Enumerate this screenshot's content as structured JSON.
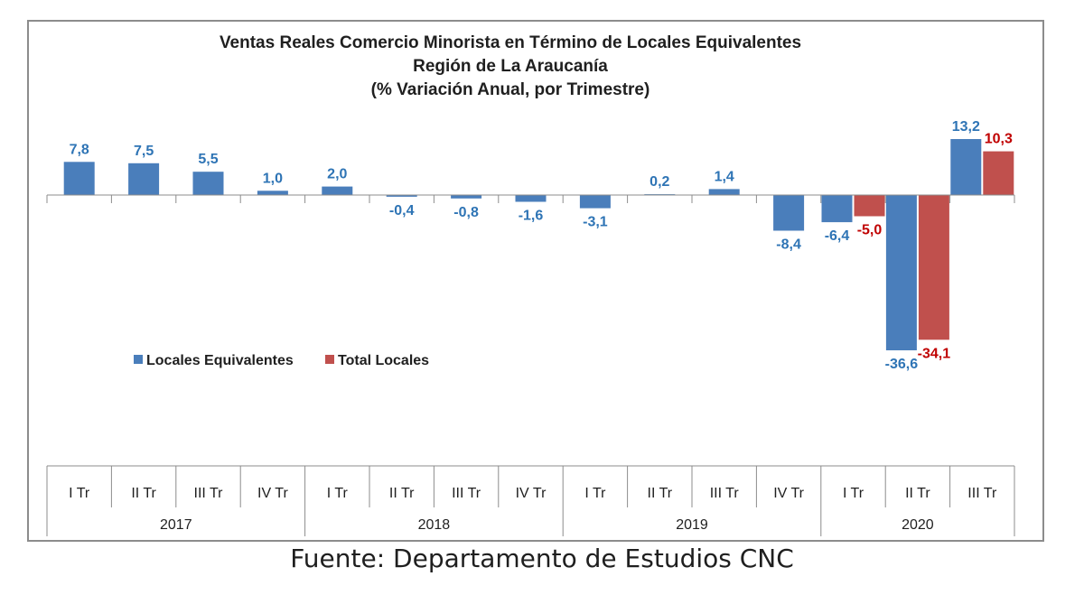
{
  "chart_data": {
    "type": "bar",
    "title": [
      "Ventas Reales Comercio Minorista  en Término de Locales Equivalentes",
      "Región de La Araucanía",
      "(% Variación Anual, por Trimestre)"
    ],
    "categories": [
      "I Tr",
      "II Tr",
      "III Tr",
      "IV Tr",
      "I Tr",
      "II Tr",
      "III Tr",
      "IV Tr",
      "I Tr",
      "II Tr",
      "III Tr",
      "IV Tr",
      "I Tr",
      "II Tr",
      "III Tr"
    ],
    "groups": [
      {
        "label": "2017",
        "count": 4
      },
      {
        "label": "2018",
        "count": 4
      },
      {
        "label": "2019",
        "count": 4
      },
      {
        "label": "2020",
        "count": 3
      }
    ],
    "series": [
      {
        "name": "Locales Equivalentes",
        "color": "#4a7ebb",
        "values": [
          7.8,
          7.5,
          5.5,
          1.0,
          2.0,
          -0.4,
          -0.8,
          -1.6,
          -3.1,
          0.2,
          1.4,
          -8.4,
          -6.4,
          -36.6,
          13.2
        ],
        "labels": [
          "7,8",
          "7,5",
          "5,5",
          "1,0",
          "2,0",
          "-0,4",
          "-0,8",
          "-1,6",
          "-3,1",
          "0,2",
          "1,4",
          "-8,4",
          "-6,4",
          "-36,6",
          "13,2"
        ],
        "label_color": "#2e74b5"
      },
      {
        "name": "Total Locales",
        "color": "#c0504d",
        "values": [
          null,
          null,
          null,
          null,
          null,
          null,
          null,
          null,
          null,
          null,
          null,
          null,
          -5.0,
          -34.1,
          10.3
        ],
        "labels": [
          null,
          null,
          null,
          null,
          null,
          null,
          null,
          null,
          null,
          null,
          null,
          null,
          "-5,0",
          "-34,1",
          "10,3"
        ],
        "label_color": "#c00000"
      }
    ],
    "legend_position": "center-left",
    "grid": false
  },
  "source_note": "Fuente: Departamento de Estudios CNC"
}
